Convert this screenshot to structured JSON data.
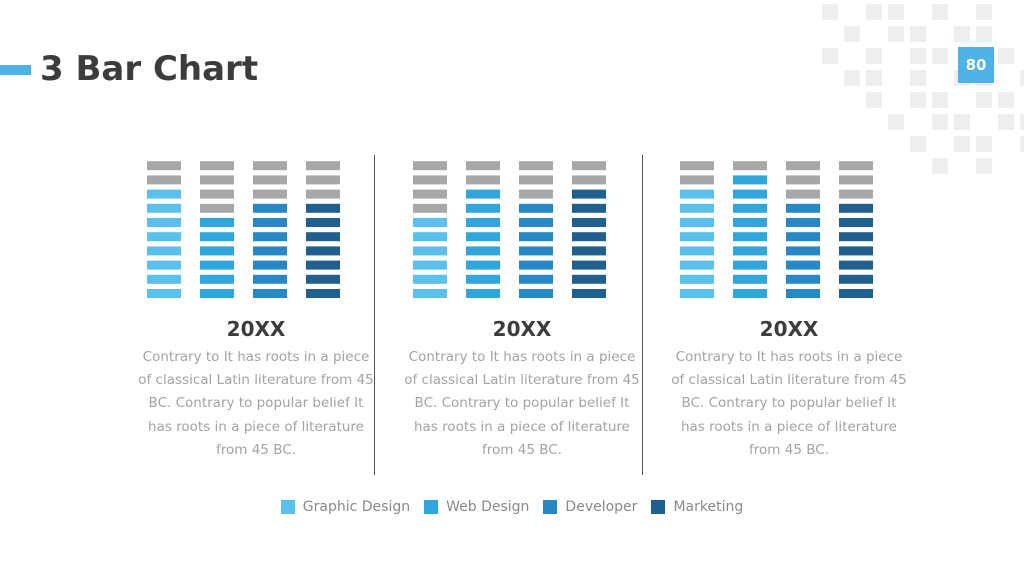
{
  "slide": {
    "title": "3 Bar Chart",
    "page_number": "80",
    "accent_color": "#4db3e6"
  },
  "chart_data": [
    {
      "type": "bar",
      "title": "20XX",
      "description": "Contrary to It has roots in a piece of classical Latin literature from 45 BC. Contrary to popular belief It has roots in a piece of literature from 45 BC.",
      "categories": [
        "Graphic Design",
        "Web Design",
        "Developer",
        "Marketing"
      ],
      "values": [
        8,
        6,
        7,
        7
      ],
      "max_segments": 10,
      "unit": "segments"
    },
    {
      "type": "bar",
      "title": "20XX",
      "description": "Contrary to It has roots in a piece of classical Latin literature from 45 BC. Contrary to popular belief It has roots in a piece of literature from 45 BC.",
      "categories": [
        "Graphic Design",
        "Web Design",
        "Developer",
        "Marketing"
      ],
      "values": [
        6,
        8,
        7,
        8
      ],
      "max_segments": 10,
      "unit": "segments"
    },
    {
      "type": "bar",
      "title": "20XX",
      "description": "Contrary to It has roots in a piece of classical Latin literature from 45 BC. Contrary to popular belief It has roots in a piece of literature from 45 BC.",
      "categories": [
        "Graphic Design",
        "Web Design",
        "Developer",
        "Marketing"
      ],
      "values": [
        8,
        9,
        7,
        7
      ],
      "max_segments": 10,
      "unit": "segments"
    }
  ],
  "legend": [
    {
      "label": "Graphic Design",
      "color": "#5bc0eb"
    },
    {
      "label": "Web Design",
      "color": "#31a6dc"
    },
    {
      "label": "Developer",
      "color": "#2888c6"
    },
    {
      "label": "Marketing",
      "color": "#205f8e"
    }
  ],
  "empty_color": "#a7a7a7"
}
